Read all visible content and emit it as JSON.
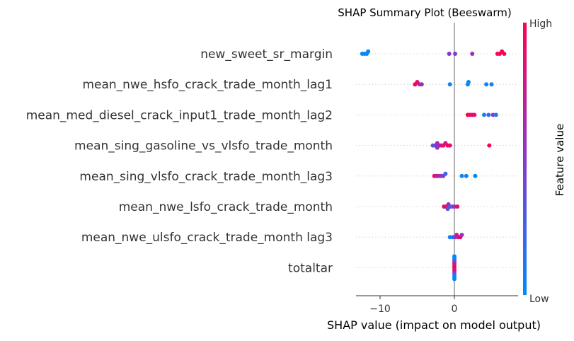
{
  "chart_data": {
    "type": "scatter",
    "subtype": "beeswarm",
    "title": "SHAP Summary Plot (Beeswarm)",
    "xlabel": "SHAP value (impact on model output)",
    "ylabel": "",
    "xlim": [
      -13,
      8
    ],
    "x_ticks": [
      -10,
      0
    ],
    "x_tick_labels": [
      "−10",
      "0"
    ],
    "grid": "horizontal dotted per feature",
    "zero_line": true,
    "colorbar": {
      "label": "Feature value",
      "high_label": "High",
      "low_label": "Low",
      "low_color": "#008bfb",
      "high_color": "#ff0052",
      "placement": "right"
    },
    "features": [
      {
        "name": "new_sweet_sr_margin",
        "points": [
          {
            "x": -12.4,
            "v": 0.0
          },
          {
            "x": -12.1,
            "v": 0.0
          },
          {
            "x": -11.8,
            "v": 0.02
          },
          {
            "x": -11.6,
            "v": 0.0
          },
          {
            "x": -0.7,
            "v": 0.5
          },
          {
            "x": 0.1,
            "v": 0.45
          },
          {
            "x": 2.4,
            "v": 0.55
          },
          {
            "x": 5.8,
            "v": 1.0
          },
          {
            "x": 6.1,
            "v": 0.95
          },
          {
            "x": 6.4,
            "v": 1.0
          },
          {
            "x": 6.7,
            "v": 0.98
          }
        ]
      },
      {
        "name": "mean_nwe_hsfo_crack_trade_month_lag1",
        "points": [
          {
            "x": -5.3,
            "v": 1.0
          },
          {
            "x": -5.0,
            "v": 0.9
          },
          {
            "x": -4.7,
            "v": 0.55
          },
          {
            "x": -4.4,
            "v": 0.6
          },
          {
            "x": -0.6,
            "v": 0.05
          },
          {
            "x": 1.8,
            "v": 0.05
          },
          {
            "x": 1.9,
            "v": 0.0
          },
          {
            "x": 4.3,
            "v": 0.05
          },
          {
            "x": 5.0,
            "v": 0.05
          }
        ]
      },
      {
        "name": "mean_med_diesel_crack_input1_trade_month_lag2",
        "points": [
          {
            "x": 1.8,
            "v": 1.0
          },
          {
            "x": 2.1,
            "v": 0.95
          },
          {
            "x": 2.4,
            "v": 0.9
          },
          {
            "x": 2.7,
            "v": 0.85
          },
          {
            "x": 4.0,
            "v": 0.1
          },
          {
            "x": 4.6,
            "v": 0.2
          },
          {
            "x": 5.2,
            "v": 0.5
          },
          {
            "x": 5.6,
            "v": 0.15
          }
        ]
      },
      {
        "name": "mean_sing_gasoline_vs_vlsfo_trade_month",
        "points": [
          {
            "x": -2.9,
            "v": 0.3
          },
          {
            "x": -2.6,
            "v": 0.4
          },
          {
            "x": -2.3,
            "v": 0.6
          },
          {
            "x": -2.1,
            "v": 0.5
          },
          {
            "x": -1.8,
            "v": 0.85
          },
          {
            "x": -1.5,
            "v": 0.9
          },
          {
            "x": -1.2,
            "v": 0.8
          },
          {
            "x": -0.9,
            "v": 0.95
          },
          {
            "x": -0.6,
            "v": 0.9
          },
          {
            "x": -2.3,
            "v": 0.55
          },
          {
            "x": 4.7,
            "v": 1.0
          }
        ]
      },
      {
        "name": "mean_sing_vlsfo_crack_trade_month_lag3",
        "points": [
          {
            "x": -2.7,
            "v": 0.85
          },
          {
            "x": -2.4,
            "v": 0.8
          },
          {
            "x": -2.1,
            "v": 0.6
          },
          {
            "x": -1.8,
            "v": 0.55
          },
          {
            "x": -1.5,
            "v": 0.4
          },
          {
            "x": -1.2,
            "v": 0.25
          },
          {
            "x": 1.0,
            "v": 0.05
          },
          {
            "x": 1.6,
            "v": 0.05
          },
          {
            "x": 2.8,
            "v": 0.0
          }
        ]
      },
      {
        "name": "mean_nwe_lsfo_crack_trade_month",
        "points": [
          {
            "x": -1.4,
            "v": 0.95
          },
          {
            "x": -1.1,
            "v": 0.9
          },
          {
            "x": -0.8,
            "v": 0.5
          },
          {
            "x": -0.6,
            "v": 0.35
          },
          {
            "x": -0.3,
            "v": 0.25
          },
          {
            "x": 0.0,
            "v": 0.6
          },
          {
            "x": 0.4,
            "v": 0.95
          },
          {
            "x": -0.9,
            "v": 0.3
          }
        ]
      },
      {
        "name": "mean_nwe_ulsfo_crack_trade_month lag3",
        "points": [
          {
            "x": -0.6,
            "v": 0.05
          },
          {
            "x": -0.2,
            "v": 0.2
          },
          {
            "x": 0.1,
            "v": 0.5
          },
          {
            "x": 0.3,
            "v": 0.8
          },
          {
            "x": 0.5,
            "v": 0.7
          },
          {
            "x": 0.8,
            "v": 0.95
          },
          {
            "x": 1.0,
            "v": 0.55
          }
        ]
      },
      {
        "name": "totaltar",
        "points": [
          {
            "x": 0.0,
            "v": 1.0
          },
          {
            "x": 0.0,
            "v": 0.95
          },
          {
            "x": 0.0,
            "v": 0.9
          },
          {
            "x": 0.0,
            "v": 0.85
          },
          {
            "x": 0.0,
            "v": 0.6
          },
          {
            "x": 0.0,
            "v": 0.45
          },
          {
            "x": 0.0,
            "v": 0.2
          },
          {
            "x": 0.0,
            "v": 0.1
          },
          {
            "x": 0.0,
            "v": 0.05
          },
          {
            "x": 0.0,
            "v": 0.0
          },
          {
            "x": 0.0,
            "v": 0.0
          }
        ]
      }
    ]
  }
}
